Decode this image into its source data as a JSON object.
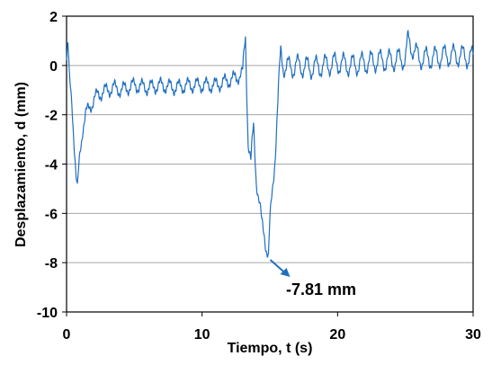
{
  "chart_data": {
    "type": "line",
    "title": "",
    "xlabel": "Tiempo, t (s)",
    "ylabel": "Desplazamiento, d (mm)",
    "xlim": [
      0,
      30
    ],
    "ylim": [
      -10,
      2
    ],
    "xticks": [
      0,
      10,
      20,
      30
    ],
    "yticks": [
      -10,
      -8,
      -6,
      -4,
      -2,
      0,
      2
    ],
    "grid": "horizontal",
    "line_color": "#1f6fc1",
    "series": [
      {
        "x": [
          0,
          0.1,
          0.2,
          0.3,
          0.4,
          0.5,
          0.6,
          0.7,
          0.8,
          0.9,
          1.0,
          1.2,
          1.4,
          1.6,
          1.8,
          2.0,
          2.3,
          2.6,
          3.0,
          3.5,
          4.0,
          5.0,
          6.0,
          7.0,
          8.0,
          9.0,
          10.0,
          11.0,
          12.0,
          12.5,
          13.0,
          13.2,
          13.3,
          13.4,
          13.6,
          13.8,
          14.0,
          14.2,
          14.4,
          14.6,
          14.8,
          14.9,
          15.0,
          15.2,
          15.4,
          15.6,
          15.8,
          16.0,
          16.5,
          17.0,
          18.0,
          19.0,
          20.0,
          21.0,
          22.0,
          23.0,
          24.0,
          25.0,
          25.2,
          26.0,
          27.0,
          28.0,
          29.0,
          30.0
        ],
        "y": [
          0.2,
          0.8,
          -0.5,
          -1.0,
          -1.5,
          -2.5,
          -3.5,
          -4.5,
          -5.1,
          -4.2,
          -3.5,
          -2.5,
          -2.0,
          -1.8,
          -1.6,
          -1.4,
          -1.2,
          -1.1,
          -1.0,
          -0.9,
          -1.0,
          -0.8,
          -0.9,
          -0.8,
          -0.9,
          -0.8,
          -0.8,
          -0.8,
          -0.6,
          -0.5,
          -0.3,
          1.2,
          -1.0,
          -3.0,
          -4.0,
          -2.5,
          -4.5,
          -5.5,
          -6.5,
          -6.8,
          -7.5,
          -7.81,
          -6.5,
          -5.0,
          -3.5,
          -1.5,
          0.5,
          0.0,
          -0.1,
          0.0,
          -0.1,
          0.0,
          0.1,
          0.0,
          0.1,
          0.2,
          0.2,
          0.3,
          1.0,
          0.3,
          0.3,
          0.4,
          0.4,
          0.3
        ]
      }
    ],
    "annotation": {
      "text": "-7.81 mm",
      "x": 14.9,
      "y": -7.81
    }
  }
}
